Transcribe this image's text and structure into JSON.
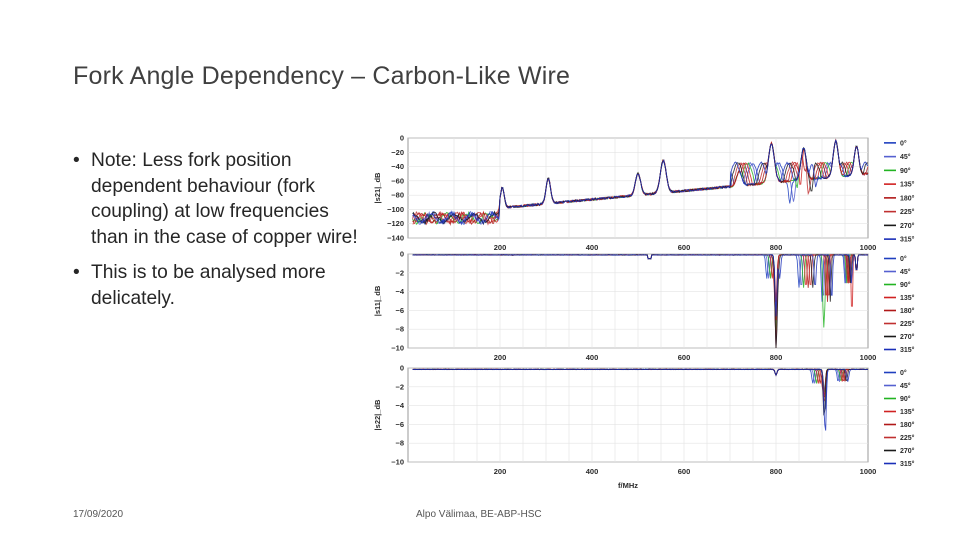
{
  "slide": {
    "title": "Fork Angle Dependency – Carbon-Like Wire",
    "bullets": [
      "Note: Less fork position dependent behaviour (fork coupling) at low frequencies than in the case of copper wire!",
      "This is to be analysed more delicately."
    ],
    "bullet_symbol": "•",
    "footer_date": "17/09/2020",
    "footer_author": "Alpo Välimaa, BE-ABP-HSC"
  },
  "chart_data": [
    {
      "type": "line",
      "ylabel": "|s21|_dB",
      "xlabel": "",
      "xlim": [
        0,
        1000
      ],
      "ylim": [
        -140,
        0
      ],
      "xticks": [
        200,
        400,
        600,
        800,
        1000
      ],
      "yticks": [
        0,
        -20,
        -40,
        -60,
        -80,
        -100,
        -120,
        -140
      ],
      "legend": [
        "0°",
        "45°",
        "90°",
        "135°",
        "180°",
        "225°",
        "270°",
        "315°"
      ],
      "colors": [
        "#1f3fbf",
        "#5560d0",
        "#22b422",
        "#d02222",
        "#b01818",
        "#c03030",
        "#1a1a1a",
        "#1a2fb8"
      ],
      "series_hint": "resonances at ~200, ~300, ~500, ~550, ~800, ~900 MHz"
    },
    {
      "type": "line",
      "ylabel": "|s11|_dB",
      "xlabel": "",
      "xlim": [
        0,
        1000
      ],
      "ylim": [
        -10,
        0
      ],
      "xticks": [
        200,
        400,
        600,
        800,
        1000
      ],
      "yticks": [
        0,
        -2,
        -4,
        -6,
        -8,
        -10
      ],
      "legend": [
        "0°",
        "45°",
        "90°",
        "135°",
        "180°",
        "225°",
        "270°",
        "315°"
      ],
      "colors": [
        "#1f3fbf",
        "#5560d0",
        "#22b422",
        "#d02222",
        "#b01818",
        "#c03030",
        "#1a1a1a",
        "#1a2fb8"
      ]
    },
    {
      "type": "line",
      "ylabel": "|s22|_dB",
      "xlabel": "f/MHz",
      "xlim": [
        0,
        1000
      ],
      "ylim": [
        -10,
        0
      ],
      "xticks": [
        200,
        400,
        600,
        800,
        1000
      ],
      "yticks": [
        0,
        -2,
        -4,
        -6,
        -8,
        -10
      ],
      "legend": [
        "0°",
        "45°",
        "90°",
        "135°",
        "180°",
        "225°",
        "270°",
        "315°"
      ],
      "colors": [
        "#1f3fbf",
        "#5560d0",
        "#22b422",
        "#d02222",
        "#b01818",
        "#c03030",
        "#1a1a1a",
        "#1a2fb8"
      ]
    }
  ]
}
